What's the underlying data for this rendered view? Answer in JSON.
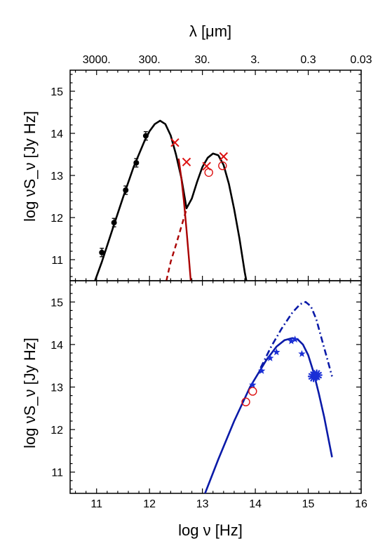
{
  "chart_data": [
    {
      "type": "line",
      "panel": "top",
      "xlabel": "log ν [Hz]",
      "ylabel": "log νS_ν [Jy Hz]",
      "top_axis_label": "λ [μm]",
      "top_axis_ticks": [
        {
          "label": "3000.",
          "log_nu": 11.0
        },
        {
          "label": "300.",
          "log_nu": 12.0
        },
        {
          "label": "30.",
          "log_nu": 13.0
        },
        {
          "label": "3.",
          "log_nu": 14.0
        },
        {
          "label": "0.3",
          "log_nu": 15.0
        },
        {
          "label": "0.03",
          "log_nu": 16.0
        }
      ],
      "xlim": [
        10.5,
        16
      ],
      "ylim": [
        10.5,
        15.5
      ],
      "yticks": [
        11,
        12,
        13,
        14,
        15
      ],
      "series": [
        {
          "style": "black-line",
          "x": [
            10.97,
            11.1,
            11.3,
            11.5,
            11.7,
            11.9,
            12.0,
            12.1,
            12.2,
            12.3,
            12.4,
            12.5,
            12.6,
            12.7,
            12.8,
            12.9,
            13.0,
            13.1,
            13.2,
            13.3,
            13.4,
            13.5,
            13.6,
            13.7,
            13.8,
            13.83
          ],
          "y": [
            10.5,
            10.95,
            11.72,
            12.48,
            13.2,
            13.8,
            14.05,
            14.22,
            14.3,
            14.22,
            13.95,
            13.5,
            12.95,
            12.22,
            12.45,
            12.85,
            13.2,
            13.42,
            13.52,
            13.48,
            13.25,
            12.8,
            12.2,
            11.5,
            10.7,
            10.5
          ]
        },
        {
          "style": "red-line",
          "x": [
            12.55,
            12.6,
            12.65,
            12.7,
            12.75,
            12.78
          ],
          "y": [
            13.4,
            12.95,
            12.4,
            11.7,
            10.95,
            10.5
          ]
        },
        {
          "style": "red-dashed",
          "x": [
            12.32,
            12.4,
            12.5,
            12.6,
            12.7
          ],
          "y": [
            10.5,
            10.95,
            11.35,
            11.78,
            12.2
          ]
        },
        {
          "style": "black-dots-errorbars",
          "x": [
            11.1,
            11.33,
            11.55,
            11.75,
            11.93
          ],
          "y": [
            11.17,
            11.88,
            12.65,
            13.3,
            13.94
          ]
        },
        {
          "style": "red-crosses",
          "x": [
            12.48,
            12.7,
            13.08,
            13.4
          ],
          "y": [
            13.78,
            13.32,
            13.22,
            13.45
          ]
        },
        {
          "style": "red-open-circles",
          "x": [
            13.12,
            13.38
          ],
          "y": [
            13.07,
            13.23
          ]
        }
      ]
    },
    {
      "type": "line",
      "panel": "bottom",
      "xlabel": "log ν [Hz]",
      "ylabel": "log νS_ν [Jy Hz]",
      "xlim": [
        10.5,
        16
      ],
      "ylim": [
        10.5,
        15.5
      ],
      "xticks": [
        11,
        12,
        13,
        14,
        15,
        16
      ],
      "yticks": [
        11,
        12,
        13,
        14,
        15
      ],
      "series": [
        {
          "style": "blue-line",
          "x": [
            13.05,
            13.3,
            13.6,
            13.9,
            14.2,
            14.4,
            14.55,
            14.7,
            14.8,
            14.9,
            15.0,
            15.1,
            15.2,
            15.3,
            15.45
          ],
          "y": [
            10.5,
            11.3,
            12.2,
            13.0,
            13.62,
            13.95,
            14.1,
            14.15,
            14.12,
            14.0,
            13.75,
            13.35,
            12.85,
            12.3,
            11.35
          ]
        },
        {
          "style": "blue-dashdot",
          "x": [
            14.1,
            14.3,
            14.5,
            14.7,
            14.85,
            14.95,
            15.05,
            15.15,
            15.25,
            15.35,
            15.45
          ],
          "y": [
            13.45,
            13.95,
            14.38,
            14.75,
            14.95,
            15.0,
            14.9,
            14.6,
            14.15,
            13.7,
            13.25
          ]
        },
        {
          "style": "blue-stars",
          "x": [
            13.95,
            14.12,
            14.28,
            14.4,
            14.68,
            14.75,
            14.88
          ],
          "y": [
            13.05,
            13.38,
            13.68,
            13.82,
            14.08,
            14.12,
            13.78
          ]
        },
        {
          "style": "blue-big-stars",
          "x": [
            15.1,
            15.16
          ],
          "y": [
            13.25,
            13.28
          ]
        },
        {
          "style": "red-open-circles",
          "x": [
            13.82,
            13.95
          ],
          "y": [
            12.65,
            12.9
          ]
        }
      ]
    }
  ]
}
